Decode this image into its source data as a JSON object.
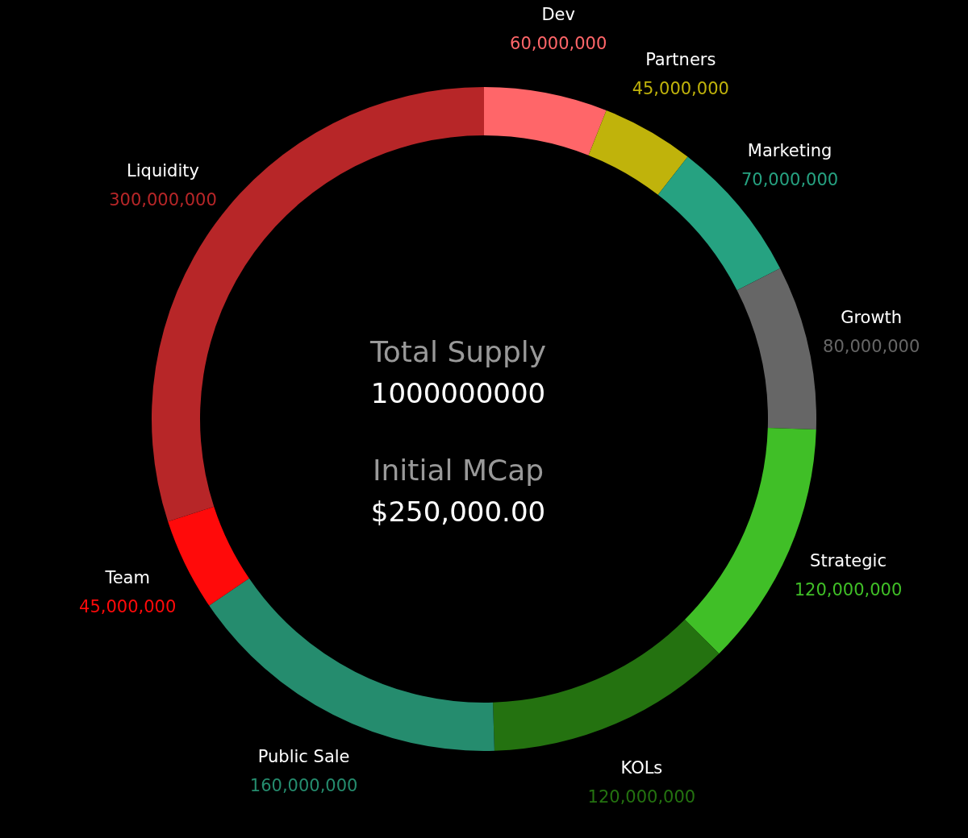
{
  "chart_data": {
    "type": "donut",
    "categories": [
      "Dev",
      "Partners",
      "Marketing",
      "Growth",
      "Strategic",
      "KOLs",
      "Public Sale",
      "Team",
      "Liquidity"
    ],
    "values": [
      60000000,
      45000000,
      70000000,
      80000000,
      120000000,
      120000000,
      160000000,
      45000000,
      300000000
    ],
    "colors": [
      "#ff6669",
      "#c0b30b",
      "#26a281",
      "#666666",
      "#40bf27",
      "#247210",
      "#258c6e",
      "#ff0a0a",
      "#b72628"
    ],
    "value_labels": [
      "60,000,000",
      "45,000,000",
      "70,000,000",
      "80,000,000",
      "120,000,000",
      "120,000,000",
      "160,000,000",
      "45,000,000",
      "300,000,000"
    ],
    "annotations": [
      "Total Supply",
      "1000000000",
      "Initial MCap",
      "$250,000.00"
    ]
  }
}
